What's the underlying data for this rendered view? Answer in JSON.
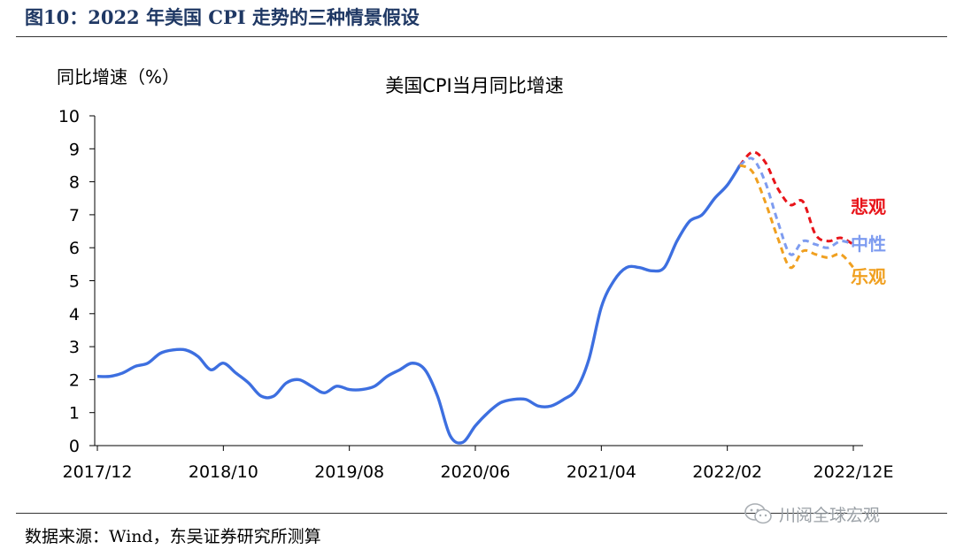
{
  "figure_title": "图10：2022 年美国 CPI 走势的三种情景假设",
  "source_note": "数据来源：Wind，东吴证券研究所测算",
  "watermark": {
    "text": "川阅全球宏观",
    "icon": "wechat-icon"
  },
  "chart_data": {
    "type": "line",
    "title": "美国CPI当月同比增速",
    "ylabel": "同比增速（%）",
    "xlabel": "",
    "ylim": [
      0,
      10
    ],
    "yticks": [
      "0",
      "1",
      "2",
      "3",
      "4",
      "5",
      "6",
      "7",
      "8",
      "9",
      "10"
    ],
    "x_tick_labels": [
      "2017/12",
      "2018/10",
      "2019/08",
      "2020/06",
      "2021/04",
      "2022/02",
      "2022/12E"
    ],
    "x_tick_index": [
      0,
      10,
      20,
      30,
      40,
      50,
      60
    ],
    "grid": false,
    "legend": "none",
    "series": [
      {
        "name": "",
        "color": "#3d6fe0",
        "style": "solid",
        "start_index": 0,
        "values": [
          2.1,
          2.1,
          2.2,
          2.4,
          2.5,
          2.8,
          2.9,
          2.9,
          2.7,
          2.3,
          2.5,
          2.2,
          1.9,
          1.5,
          1.5,
          1.9,
          2.0,
          1.8,
          1.6,
          1.8,
          1.7,
          1.7,
          1.8,
          2.1,
          2.3,
          2.5,
          2.3,
          1.5,
          0.3,
          0.1,
          0.6,
          1.0,
          1.3,
          1.4,
          1.4,
          1.2,
          1.2,
          1.4,
          1.7,
          2.6,
          4.2,
          5.0,
          5.4,
          5.4,
          5.3,
          5.4,
          6.2,
          6.8,
          7.0,
          7.5,
          7.9,
          8.5
        ]
      },
      {
        "name": "悲观",
        "color": "#e8141a",
        "style": "dashed",
        "start_index": 51,
        "values": [
          8.5,
          8.9,
          8.6,
          7.8,
          7.3,
          7.4,
          6.4,
          6.2,
          6.3,
          6.1
        ]
      },
      {
        "name": "中性",
        "color": "#7e9cf0",
        "style": "dashed",
        "start_index": 51,
        "values": [
          8.5,
          8.7,
          8.0,
          6.8,
          5.8,
          6.2,
          6.1,
          6.0,
          6.2,
          6.1
        ]
      },
      {
        "name": "乐观",
        "color": "#f0a020",
        "style": "dashed",
        "start_index": 51,
        "values": [
          8.5,
          8.3,
          7.4,
          6.3,
          5.4,
          5.9,
          5.8,
          5.7,
          5.8,
          5.4
        ]
      }
    ]
  }
}
